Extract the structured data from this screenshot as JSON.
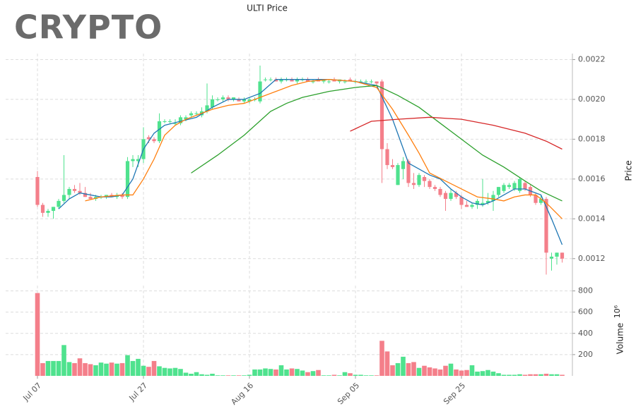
{
  "logo": "CRYPTO",
  "chart_data": {
    "type": "candlestick",
    "title": "ULTI Price",
    "ylabel": "Price",
    "volume_label": "Volume",
    "volume_unit": "10⁶",
    "grid": true,
    "up_color": "#4fe28e",
    "down_color": "#f47f8a",
    "categories": [
      "Jul 07",
      "Jul 08",
      "Jul 09",
      "Jul 10",
      "Jul 11",
      "Jul 12",
      "Jul 13",
      "Jul 14",
      "Jul 15",
      "Jul 16",
      "Jul 17",
      "Jul 18",
      "Jul 19",
      "Jul 20",
      "Jul 21",
      "Jul 22",
      "Jul 23",
      "Jul 24",
      "Jul 25",
      "Jul 26",
      "Jul 27",
      "Jul 28",
      "Jul 29",
      "Jul 30",
      "Jul 31",
      "Aug 01",
      "Aug 02",
      "Aug 03",
      "Aug 04",
      "Aug 05",
      "Aug 06",
      "Aug 07",
      "Aug 08",
      "Aug 09",
      "Aug 10",
      "Aug 11",
      "Aug 12",
      "Aug 13",
      "Aug 14",
      "Aug 15",
      "Aug 16",
      "Aug 17",
      "Aug 18",
      "Aug 19",
      "Aug 20",
      "Aug 21",
      "Aug 22",
      "Aug 23",
      "Aug 24",
      "Aug 25",
      "Aug 26",
      "Aug 27",
      "Aug 28",
      "Aug 29",
      "Aug 30",
      "Aug 31",
      "Sep 01",
      "Sep 02",
      "Sep 03",
      "Sep 04",
      "Sep 05",
      "Sep 06",
      "Sep 07",
      "Sep 08",
      "Sep 09",
      "Sep 10",
      "Sep 11",
      "Sep 12",
      "Sep 13",
      "Sep 14",
      "Sep 15",
      "Sep 16",
      "Sep 17",
      "Sep 18",
      "Sep 19",
      "Sep 20",
      "Sep 21",
      "Sep 22",
      "Sep 23",
      "Sep 24",
      "Sep 25",
      "Sep 26",
      "Sep 27",
      "Sep 28",
      "Sep 29",
      "Sep 30",
      "Oct 01",
      "Oct 02",
      "Oct 03",
      "Oct 04",
      "Oct 05",
      "Oct 06",
      "Oct 07",
      "Oct 08",
      "Oct 09",
      "Oct 10",
      "Oct 11",
      "Oct 12",
      "Oct 13",
      "Oct 14"
    ],
    "open": [
      0.00161,
      0.00147,
      0.00143,
      0.00144,
      0.00146,
      0.00149,
      0.00152,
      0.00155,
      0.00154,
      0.00153,
      0.00151,
      0.0015,
      0.00151,
      0.00151,
      0.00152,
      0.00151,
      0.00152,
      0.00151,
      0.00169,
      0.00169,
      0.0017,
      0.00181,
      0.0018,
      0.00179,
      0.00189,
      0.00189,
      0.00188,
      0.00188,
      0.0019,
      0.00192,
      0.00193,
      0.00192,
      0.00194,
      0.00196,
      0.002,
      0.002,
      0.00201,
      0.002,
      0.002,
      0.00199,
      0.00199,
      0.002,
      0.00199,
      0.0021,
      0.0021,
      0.0021,
      0.00209,
      0.0021,
      0.0021,
      0.00209,
      0.0021,
      0.0021,
      0.00209,
      0.0021,
      0.00209,
      0.00209,
      0.0021,
      0.00209,
      0.00209,
      0.0021,
      0.00209,
      0.00209,
      0.00209,
      0.00209,
      0.00209,
      0.00209,
      0.00175,
      0.00167,
      0.00157,
      0.00165,
      0.00169,
      0.00158,
      0.00157,
      0.00161,
      0.00159,
      0.00156,
      0.00155,
      0.00153,
      0.0015,
      0.00153,
      0.00151,
      0.00147,
      0.00146,
      0.00147,
      0.00147,
      0.00148,
      0.00149,
      0.00152,
      0.00154,
      0.00156,
      0.00155,
      0.00154,
      0.00158,
      0.00156,
      0.00152,
      0.00148,
      0.0015,
      0.0012,
      0.00121,
      0.00123
    ],
    "high": [
      0.00164,
      0.00148,
      0.00145,
      0.00146,
      0.0015,
      0.00172,
      0.00156,
      0.00157,
      0.00158,
      0.00156,
      0.00153,
      0.00152,
      0.00152,
      0.00152,
      0.00153,
      0.00153,
      0.00153,
      0.00171,
      0.00172,
      0.00172,
      0.00186,
      0.00182,
      0.00181,
      0.00193,
      0.0019,
      0.0019,
      0.0019,
      0.00192,
      0.00192,
      0.00194,
      0.00194,
      0.00196,
      0.00208,
      0.00202,
      0.00201,
      0.00202,
      0.00202,
      0.00201,
      0.00201,
      0.00201,
      0.00201,
      0.00201,
      0.00217,
      0.00211,
      0.00211,
      0.00211,
      0.00211,
      0.00211,
      0.00211,
      0.00211,
      0.00211,
      0.00211,
      0.0021,
      0.00211,
      0.0021,
      0.0021,
      0.00211,
      0.0021,
      0.0021,
      0.00211,
      0.0021,
      0.0021,
      0.0021,
      0.0021,
      0.00209,
      0.0021,
      0.00178,
      0.0017,
      0.00168,
      0.00171,
      0.0017,
      0.00163,
      0.00163,
      0.00162,
      0.0016,
      0.00157,
      0.00156,
      0.00154,
      0.00155,
      0.00154,
      0.00152,
      0.00149,
      0.00148,
      0.0015,
      0.0016,
      0.00153,
      0.00154,
      0.00156,
      0.00158,
      0.00158,
      0.00159,
      0.00161,
      0.00159,
      0.00157,
      0.00153,
      0.00152,
      0.00151,
      0.00123,
      0.00123,
      0.00123
    ],
    "low": [
      0.00146,
      0.00141,
      0.00141,
      0.0014,
      0.00145,
      0.00148,
      0.0015,
      0.00153,
      0.00152,
      0.00151,
      0.0015,
      0.00149,
      0.0015,
      0.0015,
      0.00151,
      0.0015,
      0.0015,
      0.0015,
      0.00166,
      0.00166,
      0.00168,
      0.00178,
      0.00178,
      0.00178,
      0.00188,
      0.00188,
      0.00187,
      0.00187,
      0.00189,
      0.00191,
      0.00192,
      0.00191,
      0.00193,
      0.00195,
      0.00199,
      0.00199,
      0.00199,
      0.00199,
      0.00199,
      0.00198,
      0.00198,
      0.00199,
      0.00198,
      0.00209,
      0.00209,
      0.00209,
      0.00208,
      0.00209,
      0.00209,
      0.00208,
      0.00209,
      0.00209,
      0.00208,
      0.00209,
      0.00208,
      0.00208,
      0.00209,
      0.00208,
      0.00208,
      0.00209,
      0.00208,
      0.00208,
      0.00208,
      0.00208,
      0.00207,
      0.00158,
      0.00165,
      0.00165,
      0.00157,
      0.0016,
      0.00156,
      0.00155,
      0.00156,
      0.00156,
      0.00155,
      0.00154,
      0.00151,
      0.00144,
      0.00149,
      0.0015,
      0.00145,
      0.00146,
      0.00145,
      0.00145,
      0.00146,
      0.00147,
      0.00144,
      0.00151,
      0.00153,
      0.00155,
      0.00154,
      0.00153,
      0.00154,
      0.00151,
      0.00147,
      0.00147,
      0.00112,
      0.00114,
      0.00117,
      0.00118
    ],
    "close": [
      0.00147,
      0.00143,
      0.00144,
      0.00146,
      0.00149,
      0.00152,
      0.00155,
      0.00154,
      0.00153,
      0.00151,
      0.0015,
      0.00151,
      0.00151,
      0.00152,
      0.00151,
      0.00152,
      0.00151,
      0.00169,
      0.0017,
      0.0017,
      0.0018,
      0.0018,
      0.00179,
      0.00189,
      0.00189,
      0.00189,
      0.00188,
      0.00191,
      0.00191,
      0.00193,
      0.00193,
      0.00194,
      0.00197,
      0.002,
      0.002,
      0.00201,
      0.002,
      0.00201,
      0.00199,
      0.002,
      0.002,
      0.002,
      0.00209,
      0.0021,
      0.0021,
      0.00209,
      0.0021,
      0.0021,
      0.00209,
      0.0021,
      0.0021,
      0.00209,
      0.00209,
      0.00209,
      0.0021,
      0.00209,
      0.00209,
      0.0021,
      0.00209,
      0.00209,
      0.00209,
      0.00209,
      0.00209,
      0.00209,
      0.00208,
      0.00175,
      0.00167,
      0.00166,
      0.00167,
      0.00169,
      0.00158,
      0.00157,
      0.00162,
      0.00159,
      0.00156,
      0.00155,
      0.00152,
      0.0015,
      0.00153,
      0.00151,
      0.00147,
      0.00146,
      0.00147,
      0.00149,
      0.00148,
      0.00149,
      0.00152,
      0.00156,
      0.00157,
      0.00157,
      0.00158,
      0.0016,
      0.00155,
      0.00152,
      0.00148,
      0.0015,
      0.00123,
      0.00121,
      0.00123,
      0.0012
    ],
    "volume": [
      780,
      120,
      140,
      140,
      140,
      290,
      130,
      120,
      165,
      120,
      110,
      100,
      125,
      115,
      125,
      115,
      120,
      195,
      140,
      160,
      95,
      85,
      140,
      90,
      75,
      70,
      75,
      65,
      30,
      20,
      35,
      15,
      10,
      20,
      5,
      5,
      5,
      5,
      5,
      5,
      10,
      60,
      60,
      70,
      65,
      60,
      100,
      60,
      70,
      65,
      50,
      35,
      45,
      55,
      5,
      5,
      10,
      5,
      35,
      25,
      10,
      10,
      5,
      5,
      5,
      330,
      230,
      100,
      120,
      180,
      120,
      130,
      75,
      95,
      80,
      70,
      60,
      95,
      115,
      60,
      50,
      55,
      100,
      40,
      45,
      55,
      40,
      25,
      10,
      10,
      10,
      15,
      10,
      15,
      15,
      15,
      20,
      15,
      15,
      10
    ],
    "ma": [
      {
        "color": "#1f77b4",
        "x": [
          "Jul 11",
          "Jul 13",
          "Jul 15",
          "Jul 17",
          "Jul 19",
          "Jul 21",
          "Jul 23",
          "Jul 25",
          "Jul 27",
          "Jul 29",
          "Jul 31",
          "Aug 03",
          "Aug 06",
          "Aug 09",
          "Aug 12",
          "Aug 15",
          "Aug 18",
          "Aug 21",
          "Aug 26",
          "Aug 31",
          "Sep 05",
          "Sep 09",
          "Sep 12",
          "Sep 15",
          "Sep 17",
          "Sep 19",
          "Sep 21",
          "Sep 23",
          "Sep 25",
          "Sep 27",
          "Sep 29",
          "Oct 01",
          "Oct 03",
          "Oct 05",
          "Oct 07",
          "Oct 09",
          "Oct 10",
          "Oct 12",
          "Oct 14"
        ],
        "values": [
          0.00145,
          0.0015,
          0.00153,
          0.00152,
          0.00151,
          0.00151,
          0.00152,
          0.0016,
          0.00175,
          0.00183,
          0.00187,
          0.00189,
          0.00191,
          0.00196,
          0.002,
          0.002,
          0.00203,
          0.0021,
          0.0021,
          0.0021,
          0.00209,
          0.00207,
          0.0019,
          0.00168,
          0.00165,
          0.00162,
          0.0016,
          0.00155,
          0.00151,
          0.00148,
          0.00147,
          0.00149,
          0.00152,
          0.00155,
          0.00155,
          0.00153,
          0.00152,
          0.0014,
          0.00127
        ]
      },
      {
        "color": "#ff7f0e",
        "x": [
          "Jul 16",
          "Jul 19",
          "Jul 23",
          "Jul 25",
          "Jul 27",
          "Jul 29",
          "Jul 31",
          "Aug 02",
          "Aug 04",
          "Aug 06",
          "Aug 09",
          "Aug 12",
          "Aug 15",
          "Aug 18",
          "Aug 21",
          "Aug 24",
          "Aug 27",
          "Aug 31",
          "Sep 05",
          "Sep 09",
          "Sep 12",
          "Sep 15",
          "Sep 17",
          "Sep 19",
          "Sep 22",
          "Sep 25",
          "Sep 28",
          "Oct 01",
          "Oct 03",
          "Oct 05",
          "Oct 07",
          "Oct 09",
          "Oct 11",
          "Oct 14"
        ],
        "values": [
          0.00149,
          0.00151,
          0.00152,
          0.00152,
          0.0016,
          0.0017,
          0.00182,
          0.00187,
          0.0019,
          0.00192,
          0.00195,
          0.00197,
          0.00198,
          0.00201,
          0.00204,
          0.00207,
          0.00209,
          0.0021,
          0.00209,
          0.00206,
          0.00195,
          0.00182,
          0.00173,
          0.00163,
          0.00159,
          0.00155,
          0.00151,
          0.0015,
          0.00149,
          0.00151,
          0.00152,
          0.00152,
          0.00148,
          0.0014
        ]
      },
      {
        "color": "#2ca02c",
        "x": [
          "Aug 05",
          "Aug 10",
          "Aug 15",
          "Aug 20",
          "Aug 23",
          "Aug 26",
          "Aug 31",
          "Sep 05",
          "Sep 09",
          "Sep 13",
          "Sep 17",
          "Sep 21",
          "Sep 25",
          "Sep 29",
          "Oct 03",
          "Oct 07",
          "Oct 10",
          "Oct 14"
        ],
        "values": [
          0.00163,
          0.00172,
          0.00182,
          0.00194,
          0.00198,
          0.00201,
          0.00204,
          0.00206,
          0.00207,
          0.00202,
          0.00196,
          0.00188,
          0.0018,
          0.00172,
          0.00166,
          0.00159,
          0.00154,
          0.00149
        ]
      },
      {
        "color": "#d62728",
        "x": [
          "Sep 04",
          "Sep 08",
          "Sep 13",
          "Sep 19",
          "Sep 25",
          "Oct 01",
          "Oct 07",
          "Oct 11",
          "Oct 14"
        ],
        "values": [
          0.00184,
          0.00189,
          0.0019,
          0.00191,
          0.0019,
          0.00187,
          0.00183,
          0.00179,
          0.00175
        ]
      }
    ],
    "ylim": [
      0.0011,
      0.00223
    ],
    "yticks": [
      0.0012,
      0.0014,
      0.0016,
      0.0018,
      0.002,
      0.0022
    ],
    "yticklabels": [
      "0.0012",
      "0.0014",
      "0.0016",
      "0.0018",
      "0.0020",
      "0.0022"
    ],
    "volume_ylim": [
      0,
      850
    ],
    "volume_yticks": [
      200,
      400,
      600,
      800
    ],
    "xticks": [
      "Jul 07",
      "Jul 27",
      "Aug 16",
      "Sep 05",
      "Sep 25"
    ]
  }
}
